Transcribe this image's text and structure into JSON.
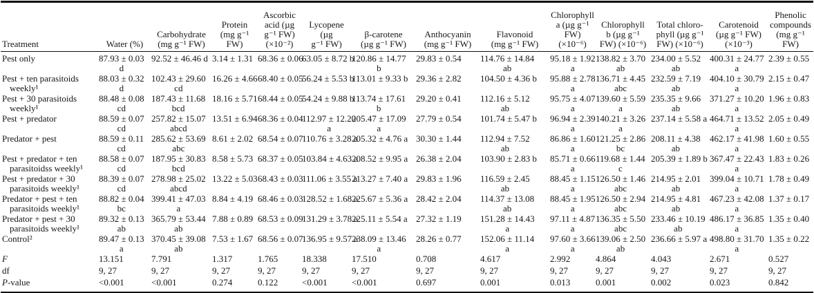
{
  "table": {
    "columns": [
      {
        "label": "Treatment"
      },
      {
        "label": "Water (%)"
      },
      {
        "label": "Carbohydrate\n(mg g⁻¹ FW)"
      },
      {
        "label": "Protein\n(mg g⁻¹\nFW)"
      },
      {
        "label": "Ascorbic\nacid (µg\ng⁻¹ FW)\n(×10⁻²)"
      },
      {
        "label": "Lycopene (µg\ng⁻¹ FW)"
      },
      {
        "label": "β-carotene\n(µg g⁻¹ FW)"
      },
      {
        "label": "Anthocyanin\n(mg g⁻¹ FW)"
      },
      {
        "label": "Flavonoid\n(mg g⁻¹ FW)"
      },
      {
        "label": "Chlorophyll\na (µg g⁻¹\nFW)\n(×10⁻⁶)"
      },
      {
        "label": "Chlorophyll\nb (µg g⁻¹\nFW) (×10⁻⁶)"
      },
      {
        "label": "Total chloro-\nphyll (µg g⁻¹\nFW) (×10⁻⁶)"
      },
      {
        "label": "Carotenoid\n(µg g⁻¹ FW)\n(×10⁻³)"
      },
      {
        "label": "Phenolic\ncompounds\n(mg g⁻¹\nFW)"
      }
    ],
    "rows": [
      {
        "label_i": "",
        "label": "Pest only",
        "stat": false,
        "cells": [
          "87.93 ± 0.03\nd",
          "92.52 ± 46.46 d",
          "3.14 ± 1.31",
          "68.36 ± 0.06",
          "63.05 ± 8.72 b",
          "120.86 ± 14.77\nb",
          "29.83 ± 0.54",
          "114.76 ± 14.84\nab",
          "95.18 ± 1.92\na",
          "138.82 ± 3.70\nab",
          "234.00 ± 5.52\nab",
          "400.31 ± 24.77\na",
          "2.39 ± 0.55"
        ]
      },
      {
        "label_i": "",
        "label": "Pest + ten parasitoids weekly¹",
        "stat": false,
        "cells": [
          "88.03 ± 0.32\nd",
          "102.43 ± 29.60\ncd",
          "16.26 ± 4.66",
          "68.40 ± 0.05",
          "56.24 ± 5.53 b",
          "113.01 ± 9.33 b",
          "29.36 ± 2.82",
          "104.50 ± 4.36 b",
          "95.88 ± 2.78\na",
          "136.71 ± 4.45\nabc",
          "232.59 ± 7.19\nab",
          "404.10 ± 30.79\na",
          "2.15 ± 0.47"
        ]
      },
      {
        "label_i": "",
        "label": "Pest + 30 parasitoids weekly¹",
        "stat": false,
        "cells": [
          "88.48 ± 0.08\ncd",
          "187.43 ± 11.68\nbcd",
          "18.16 ± 5.71",
          "68.44 ± 0.05",
          "54.24 ± 9.88 b",
          "113.74 ± 17.61\nb",
          "29.20 ± 0.41",
          "112.16 ± 5.12\nab",
          "95.75 ± 4.07\na",
          "139.60 ± 5.59\na",
          "235.35 ± 9.66\nab",
          "371.27 ± 10.20\na",
          "1.96 ± 0.83"
        ]
      },
      {
        "label_i": "",
        "label": "Pest + predator",
        "stat": false,
        "cells": [
          "88.59 ± 0.07\ncd",
          "257.82 ± 15.07\nabcd",
          "13.51 ± 6.94",
          "68.36 ± 0.04",
          "112.97 ± 12.20\na",
          "205.47 ± 17.09\na",
          "27.79 ± 0.54",
          "101.74 ± 5.47 b",
          "96.94 ± 2.39\na",
          "140.21 ± 3.26\na",
          "237.14 ± 5.58 a",
          "464.71 ± 13.52\na",
          "2.05 ± 0.49"
        ]
      },
      {
        "label_i": "",
        "label": "Predator + pest",
        "stat": false,
        "cells": [
          "88.59 ± 0.11\ncd",
          "285.62 ± 53.69\nabc",
          "8.61 ± 2.02",
          "68.54 ± 0.07",
          "110.76 ± 3.28 a",
          "205.32 ± 4.76 a",
          "30.30 ± 1.44",
          "112.94 ± 7.52\nab",
          "86.86 ± 1.60\na",
          "121.25 ± 2.86\nbc",
          "208.11 ± 4.38\nab",
          "462.17 ± 41.98\na",
          "1.60 ± 0.55"
        ]
      },
      {
        "label_i": "",
        "label": "Pest + predator + ten parasitoidss weekly¹",
        "stat": false,
        "cells": [
          "88.58 ± 0.07\ncd",
          "187.95 ± 30.83\nbcd",
          "8.58 ± 5.73",
          "68.37 ± 0.05",
          "103.84 ± 4.63 a",
          "208.52 ± 9.95 a",
          "26.38 ± 2.04",
          "103.90 ± 2.83 b",
          "85.71 ± 0.66\na",
          "119.68 ± 1.44\nc",
          "205.39 ± 1.89 b",
          "367.47 ± 22.43\na",
          "1.83 ± 0.26"
        ]
      },
      {
        "label_i": "",
        "label": "Pest + predator + 30 parasitoids weekly¹",
        "stat": false,
        "cells": [
          "88.39 ± 0.07\ncd",
          "278.98 ± 25.02\nabcd",
          "13.22 ± 5.03",
          "68.43 ± 0.03",
          "111.06 ± 3.55 a",
          "213.27 ± 7.40 a",
          "29.83 ± 1.96",
          "116.59 ± 2.45\nab",
          "88.45 ± 1.15\na",
          "126.50 ± 1.46\nabc",
          "214.95 ± 2.01\nab",
          "399.04 ± 10.71\na",
          "1.78 ± 0.49"
        ]
      },
      {
        "label_i": "",
        "label": "Predator + pest + ten parasitoids weekly¹",
        "stat": false,
        "cells": [
          "88.82 ± 0.04\nbc",
          "399.41 ± 47.03\na",
          "8.84 ± 4.19",
          "68.46 ± 0.03",
          "128.52 ± 1.68 a",
          "225.67 ± 5.36 a",
          "28.42 ± 2.04",
          "114.37 ± 13.08\nab",
          "88.45 ± 1.95\na",
          "126.50 ± 2.94\nabc",
          "214.95 ± 4.81\nab",
          "467.23 ± 42.08\na",
          "1.37 ± 0.17"
        ]
      },
      {
        "label_i": "",
        "label": "Predator + pest + 30 parasitoids weekly¹",
        "stat": false,
        "cells": [
          "89.32 ± 0.13\nab",
          "365.79 ± 53.44\nab",
          "7.88 ± 0.89",
          "68.53 ± 0.09",
          "131.29 ± 3.78 a",
          "225.11 ± 5.54 a",
          "27.32 ± 1.19",
          "151.28 ± 14.43\na",
          "97.11 ± 4.87\na",
          "136.35 ± 5.50\nabc",
          "233.46 ± 10.19\nab",
          "486.17 ± 36.85\na",
          "1.35 ± 0.40"
        ]
      },
      {
        "label_i": "",
        "label": "Control²",
        "stat": false,
        "cells": [
          "89.47 ± 0.13\na",
          "370.45 ± 39.08\nab",
          "7.53 ± 1.67",
          "68.56 ± 0.07",
          "136.95 ± 9.57 a",
          "238.09 ± 13.46\na",
          "28.26 ± 0.77",
          "152.06 ± 11.14\na",
          "97.60 ± 3.66\na",
          "139.06 ± 2.50\nab",
          "236.66 ± 5.97 a",
          "498.80 ± 31.70\na",
          "1.35 ± 0.22"
        ]
      },
      {
        "label_i": "F",
        "label": "",
        "stat": true,
        "cells": [
          "13.151",
          "7.791",
          "1.317",
          "1.765",
          "18.338",
          "17.510",
          "0.708",
          "4.617",
          "2.992",
          "4.864",
          "4.043",
          "2.671",
          "0.527"
        ]
      },
      {
        "label_i": "",
        "label": "df",
        "stat": true,
        "cells": [
          "9, 27",
          "9, 27",
          "9, 27",
          "9, 27",
          "9, 27",
          "9, 27",
          "9, 27",
          "9, 27",
          "9, 27",
          "9, 27",
          "9, 27",
          "9, 27",
          "9, 27"
        ]
      },
      {
        "label_i": "P",
        "label": "-value",
        "stat": true,
        "cells": [
          "<0.001",
          "<0.001",
          "0.274",
          "0.122",
          "<0.001",
          "<0.001",
          "0.697",
          "0.001",
          "0.013",
          "0.001",
          "0.002",
          "0.023",
          "0.842"
        ]
      }
    ]
  }
}
